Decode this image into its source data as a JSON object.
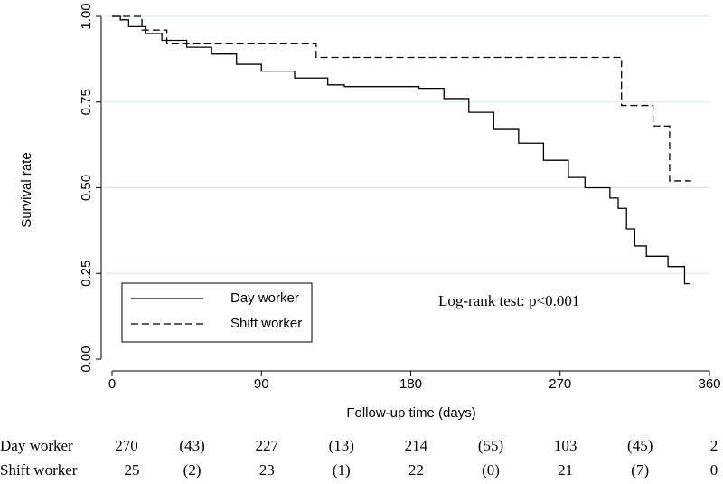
{
  "chart_data": {
    "type": "line",
    "xlabel": "Follow-up time (days)",
    "ylabel": "Survival rate",
    "xlim": [
      0,
      360
    ],
    "xticks": [
      0,
      90,
      180,
      270,
      360
    ],
    "ylim": [
      0,
      1
    ],
    "yticks": [
      {
        "value": 0,
        "label": "0.00"
      },
      {
        "value": 0.25,
        "label": "0.25"
      },
      {
        "value": 0.5,
        "label": "0.50"
      },
      {
        "value": 0.75,
        "label": "0.75"
      },
      {
        "value": 1,
        "label": "1.00"
      }
    ],
    "grid": true,
    "legend": "bottom-left",
    "annotation": "Log-rank test: p<0.001",
    "series": [
      {
        "name": "Day worker",
        "color": "#000000",
        "line_style": "solid",
        "x": [
          0,
          5,
          5,
          10,
          10,
          20,
          20,
          30,
          30,
          45,
          45,
          60,
          60,
          75,
          75,
          90,
          90,
          110,
          110,
          130,
          130,
          140,
          140,
          185,
          185,
          200,
          200,
          215,
          215,
          230,
          230,
          245,
          245,
          260,
          260,
          275,
          275,
          285,
          285,
          300,
          300,
          305,
          305,
          310,
          310,
          315,
          315,
          322,
          322,
          335,
          335,
          345,
          345,
          348
        ],
        "values": [
          1,
          1,
          0.99,
          0.99,
          0.97,
          0.97,
          0.95,
          0.95,
          0.93,
          0.93,
          0.91,
          0.91,
          0.89,
          0.89,
          0.86,
          0.86,
          0.84,
          0.84,
          0.82,
          0.82,
          0.8,
          0.8,
          0.795,
          0.795,
          0.79,
          0.79,
          0.76,
          0.76,
          0.72,
          0.72,
          0.67,
          0.67,
          0.63,
          0.63,
          0.58,
          0.58,
          0.53,
          0.53,
          0.5,
          0.5,
          0.47,
          0.47,
          0.44,
          0.44,
          0.38,
          0.38,
          0.33,
          0.33,
          0.3,
          0.3,
          0.27,
          0.27,
          0.22,
          0.22
        ]
      },
      {
        "name": "Shift worker",
        "color": "#000000",
        "line_style": "dashed",
        "x": [
          0,
          18,
          18,
          33,
          33,
          123,
          123,
          307,
          307,
          326,
          326,
          336,
          336,
          349
        ],
        "values": [
          1,
          1,
          0.96,
          0.96,
          0.92,
          0.92,
          0.88,
          0.88,
          0.74,
          0.74,
          0.68,
          0.68,
          0.52,
          0.52
        ]
      }
    ]
  },
  "risk_table": {
    "rows": [
      {
        "label": "Day worker",
        "cells": [
          "270",
          "(43)",
          "227",
          "(13)",
          "214",
          "(55)",
          "103",
          "(45)",
          "2"
        ]
      },
      {
        "label": "Shift worker",
        "cells": [
          "25",
          "(2)",
          "23",
          "(1)",
          "22",
          "(0)",
          "21",
          "(7)",
          "0"
        ]
      }
    ]
  }
}
